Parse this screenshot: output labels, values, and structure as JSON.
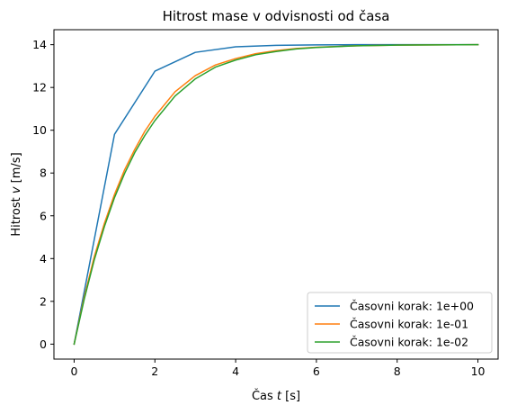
{
  "chart_data": {
    "type": "line",
    "title": "Hitrost mase v odvisnosti od časa",
    "xlabel_prefix": "Čas ",
    "xlabel_var": "t",
    "xlabel_suffix": " [s]",
    "ylabel_prefix": "Hitrost ",
    "ylabel_var": "v",
    "ylabel_suffix": " [m/s]",
    "xlim": [
      -0.5,
      10.5
    ],
    "ylim": [
      -0.7,
      14.7
    ],
    "xticks": [
      0,
      2,
      4,
      6,
      8,
      10
    ],
    "yticks": [
      0,
      2,
      4,
      6,
      8,
      10,
      12,
      14
    ],
    "grid": false,
    "legend_position": "bottom-right",
    "series": [
      {
        "name": "Časovni korak: 1e+00",
        "color": "#1f77b4",
        "x": [
          0,
          1,
          2,
          3,
          4,
          5,
          6,
          7,
          8,
          9,
          10
        ],
        "y": [
          0,
          9.81,
          12.76,
          13.64,
          13.9,
          13.97,
          13.99,
          14.0,
          14.0,
          14.0,
          14.0
        ]
      },
      {
        "name": "Časovni korak: 1e-01",
        "color": "#ff7f0e",
        "x": [
          0,
          0.25,
          0.5,
          0.75,
          1,
          1.25,
          1.5,
          1.75,
          2,
          2.5,
          3,
          3.5,
          4,
          4.5,
          5,
          5.5,
          6,
          7,
          8,
          9,
          10
        ],
        "y": [
          0,
          2.2,
          4.1,
          5.65,
          7.0,
          8.15,
          9.1,
          9.95,
          10.65,
          11.8,
          12.55,
          13.05,
          13.35,
          13.58,
          13.72,
          13.82,
          13.88,
          13.95,
          13.98,
          13.99,
          14.0
        ]
      },
      {
        "name": "Časovni korak: 1e-02",
        "color": "#2ca02c",
        "x": [
          0,
          0.25,
          0.5,
          0.75,
          1,
          1.25,
          1.5,
          1.75,
          2,
          2.5,
          3,
          3.5,
          4,
          4.5,
          5,
          5.5,
          6,
          7,
          8,
          9,
          10
        ],
        "y": [
          0,
          2.1,
          3.95,
          5.5,
          6.85,
          7.98,
          8.95,
          9.75,
          10.45,
          11.6,
          12.4,
          12.95,
          13.28,
          13.53,
          13.68,
          13.8,
          13.87,
          13.95,
          13.98,
          13.99,
          14.0
        ]
      }
    ]
  }
}
